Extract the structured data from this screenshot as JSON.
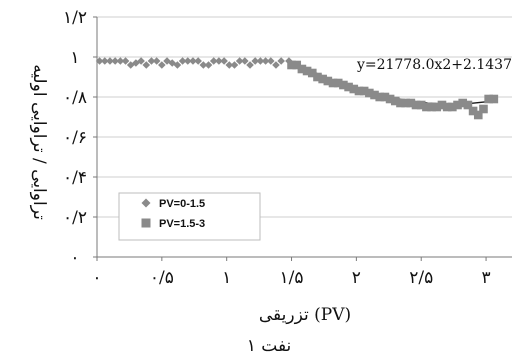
{
  "chart_data": {
    "type": "scatter",
    "title": "",
    "xlabel": "(PV) تزریقی",
    "ylabel": "تراوایی / تراوایی اولیه",
    "caption": "نفت ۱",
    "xlim": [
      0,
      3.2
    ],
    "ylim": [
      0,
      1.2
    ],
    "x_ticks": [
      {
        "value": 0,
        "label": "۰"
      },
      {
        "value": 0.5,
        "label": "۰/۵"
      },
      {
        "value": 1,
        "label": "۱"
      },
      {
        "value": 1.5,
        "label": "۱/۵"
      },
      {
        "value": 2,
        "label": "۲"
      },
      {
        "value": 2.5,
        "label": "۲/۵"
      },
      {
        "value": 3,
        "label": "۳"
      }
    ],
    "y_ticks": [
      {
        "value": 0,
        "label": "۰"
      },
      {
        "value": 0.2,
        "label": "۰/۲"
      },
      {
        "value": 0.4,
        "label": "۰/۴"
      },
      {
        "value": 0.6,
        "label": "۰/۶"
      },
      {
        "value": 0.8,
        "label": "۰/۸"
      },
      {
        "value": 1.0,
        "label": "۱"
      },
      {
        "value": 1.2,
        "label": "۱/۲"
      }
    ],
    "grid": "horizontal",
    "legend_position": "bottom-left",
    "annotation": "y=21778.0x2+2.1437",
    "series": [
      {
        "name": "PV=0-1.5",
        "marker": "diamond",
        "color": "#8a8a8a",
        "x": [
          0.02,
          0.06,
          0.1,
          0.14,
          0.18,
          0.22,
          0.26,
          0.3,
          0.34,
          0.38,
          0.42,
          0.46,
          0.5,
          0.54,
          0.58,
          0.62,
          0.66,
          0.7,
          0.74,
          0.78,
          0.82,
          0.86,
          0.9,
          0.94,
          0.98,
          1.02,
          1.06,
          1.1,
          1.14,
          1.18,
          1.22,
          1.26,
          1.3,
          1.34,
          1.38,
          1.42,
          1.48
        ],
        "y": [
          0.98,
          0.98,
          0.98,
          0.98,
          0.98,
          0.98,
          0.96,
          0.97,
          0.98,
          0.96,
          0.98,
          0.98,
          0.96,
          0.98,
          0.97,
          0.96,
          0.98,
          0.98,
          0.98,
          0.98,
          0.96,
          0.96,
          0.98,
          0.98,
          0.98,
          0.96,
          0.96,
          0.98,
          0.98,
          0.96,
          0.98,
          0.98,
          0.98,
          0.98,
          0.96,
          0.98,
          0.98
        ]
      },
      {
        "name": "PV=1.5-3",
        "marker": "square",
        "color": "#8a8a8a",
        "x": [
          1.5,
          1.54,
          1.58,
          1.62,
          1.66,
          1.7,
          1.74,
          1.78,
          1.82,
          1.86,
          1.9,
          1.94,
          1.98,
          2.02,
          2.06,
          2.1,
          2.14,
          2.18,
          2.22,
          2.26,
          2.3,
          2.34,
          2.38,
          2.42,
          2.46,
          2.5,
          2.54,
          2.58,
          2.62,
          2.66,
          2.7,
          2.74,
          2.78,
          2.82,
          2.86,
          2.9,
          2.94,
          2.98,
          3.02,
          3.06
        ],
        "y": [
          0.96,
          0.96,
          0.94,
          0.93,
          0.92,
          0.9,
          0.89,
          0.88,
          0.87,
          0.87,
          0.86,
          0.85,
          0.84,
          0.83,
          0.83,
          0.82,
          0.81,
          0.8,
          0.8,
          0.79,
          0.78,
          0.77,
          0.77,
          0.77,
          0.76,
          0.76,
          0.75,
          0.75,
          0.75,
          0.76,
          0.75,
          0.75,
          0.76,
          0.77,
          0.76,
          0.73,
          0.71,
          0.74,
          0.79,
          0.79
        ]
      }
    ],
    "trendline": {
      "x": [
        1.5,
        1.65,
        1.8,
        1.95,
        2.1,
        2.25,
        2.4,
        2.55,
        2.7,
        2.85,
        3.0,
        3.08
      ],
      "y": [
        0.97,
        0.93,
        0.89,
        0.854,
        0.824,
        0.8,
        0.782,
        0.77,
        0.764,
        0.766,
        0.776,
        0.785
      ]
    }
  }
}
